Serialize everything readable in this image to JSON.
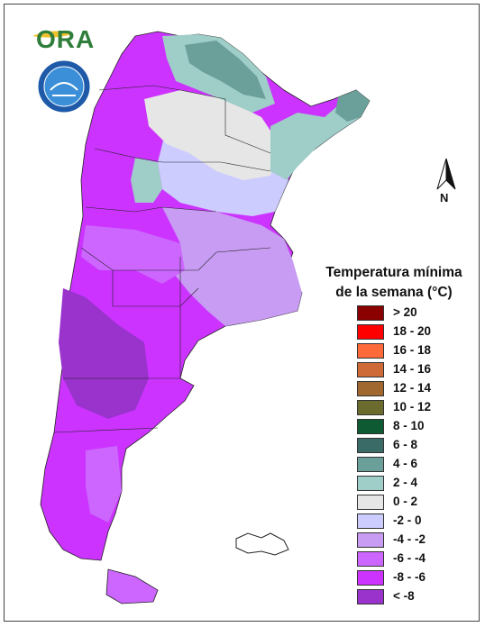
{
  "logo": {
    "text": "ORA"
  },
  "seal": {
    "top_text": "SERVICIO METEOROLÓGICO NACIONAL",
    "bottom_text": "ARGENTINA"
  },
  "north_arrow": {
    "label": "N"
  },
  "legend": {
    "title_line1": "Temperatura mínima",
    "title_line2": "de la semana (°C)",
    "items": [
      {
        "label": "> 20",
        "color": "#8b0000"
      },
      {
        "label": "18 - 20",
        "color": "#ff0000"
      },
      {
        "label": "16 - 18",
        "color": "#ff6a3a"
      },
      {
        "label": "14 - 16",
        "color": "#cd6a38"
      },
      {
        "label": "12 - 14",
        "color": "#a0672e"
      },
      {
        "label": "10 - 12",
        "color": "#6b6b2e"
      },
      {
        "label": "8 - 10",
        "color": "#0e5a32"
      },
      {
        "label": "6 - 8",
        "color": "#3b6b66"
      },
      {
        "label": "4 - 6",
        "color": "#6b9f9a"
      },
      {
        "label": "2 - 4",
        "color": "#9fcdc8"
      },
      {
        "label": "0 - 2",
        "color": "#e6e6e6"
      },
      {
        "label": "-2 - 0",
        "color": "#ccccff"
      },
      {
        "label": "-4 - -2",
        "color": "#c89cf2"
      },
      {
        "label": "-6 - -4",
        "color": "#cc66ff"
      },
      {
        "label": "-8 - -6",
        "color": "#cc33ff"
      },
      {
        "label": "< -8",
        "color": "#9933cc"
      }
    ]
  }
}
